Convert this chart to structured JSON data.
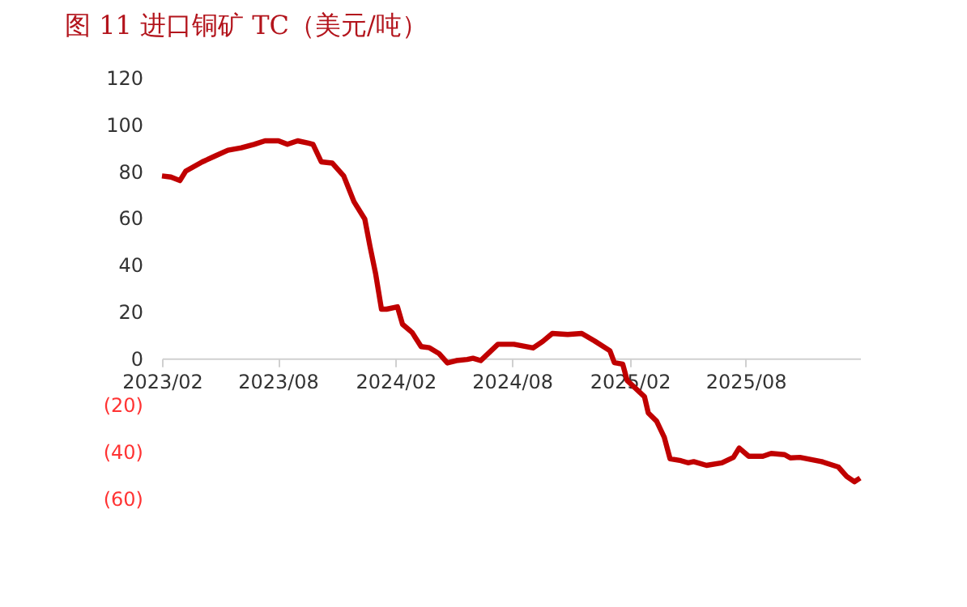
{
  "chart_data": {
    "type": "line",
    "title": "图 11  进口铜矿 TC（美元/吨）",
    "x": [
      "2023-02-01",
      "2023-02-15",
      "2023-03-01",
      "2023-03-10",
      "2023-04-05",
      "2023-04-25",
      "2023-05-15",
      "2023-06-05",
      "2023-06-25",
      "2023-07-12",
      "2023-08-02",
      "2023-08-16",
      "2023-09-01",
      "2023-09-18",
      "2023-09-25",
      "2023-10-08",
      "2023-10-25",
      "2023-11-12",
      "2023-11-28",
      "2023-12-15",
      "2023-12-23",
      "2024-01-01",
      "2024-01-10",
      "2024-01-18",
      "2024-02-04",
      "2024-02-12",
      "2024-02-27",
      "2024-03-12",
      "2024-03-25",
      "2024-04-09",
      "2024-04-22",
      "2024-05-06",
      "2024-05-23",
      "2024-06-01",
      "2024-06-13",
      "2024-07-10",
      "2024-08-04",
      "2024-09-03",
      "2024-09-18",
      "2024-10-03",
      "2024-10-27",
      "2024-11-18",
      "2024-12-08",
      "2025-01-01",
      "2025-01-08",
      "2025-01-21",
      "2025-01-28",
      "2025-02-24",
      "2025-03-02",
      "2025-03-15",
      "2025-03-27",
      "2025-04-05",
      "2025-04-22",
      "2025-05-03",
      "2025-05-12",
      "2025-06-01",
      "2025-06-25",
      "2025-07-13",
      "2025-07-22",
      "2025-08-06",
      "2025-08-28",
      "2025-09-10",
      "2025-10-01",
      "2025-10-10",
      "2025-10-25",
      "2025-11-28",
      "2025-12-24",
      "2026-01-06",
      "2026-01-18",
      "2026-01-27"
    ],
    "series": [
      {
        "color": "#c00000",
        "values": [
          78,
          77.5,
          76,
          80,
          84,
          86.5,
          89,
          90,
          91.5,
          93,
          93,
          91.5,
          93,
          92,
          91.5,
          84,
          83.5,
          78,
          67,
          59.5,
          48,
          36,
          21,
          21,
          22,
          14.5,
          11,
          5,
          4.5,
          2,
          -2,
          -1,
          -0.5,
          0,
          -1,
          6,
          6,
          4.4,
          7.2,
          10.6,
          10.2,
          10.6,
          7.4,
          3.2,
          -1.9,
          -2.5,
          -9.5,
          -16.4,
          -23.4,
          -26.9,
          -33.8,
          -43,
          -43.8,
          -44.7,
          -44.2,
          -45.8,
          -44.7,
          -42.4,
          -38.4,
          -41.9,
          -41.9,
          -40.7,
          -41.2,
          -42.6,
          -42.4,
          -44.2,
          -46.5,
          -50.5,
          -52.8,
          -51.2
        ]
      }
    ],
    "xlim": [
      "2023-02-01",
      "2026-01-27"
    ],
    "xticks": [
      {
        "value": "2023-02-01",
        "label": "2023/02"
      },
      {
        "value": "2023-08-01",
        "label": "2023/08"
      },
      {
        "value": "2024-02-01",
        "label": "2024/02"
      },
      {
        "value": "2024-08-01",
        "label": "2024/08"
      },
      {
        "value": "2025-02-01",
        "label": "2025/02"
      },
      {
        "value": "2025-08-01",
        "label": "2025/08"
      }
    ],
    "ylim": [
      -60,
      120
    ],
    "yticks": [
      {
        "value": -60,
        "label": "(60)"
      },
      {
        "value": -40,
        "label": "(40)"
      },
      {
        "value": -20,
        "label": "(20)"
      },
      {
        "value": 0,
        "label": "0"
      },
      {
        "value": 20,
        "label": "20"
      },
      {
        "value": 40,
        "label": "40"
      },
      {
        "value": 60,
        "label": "60"
      },
      {
        "value": 80,
        "label": "80"
      },
      {
        "value": 100,
        "label": "100"
      },
      {
        "value": 120,
        "label": "120"
      }
    ],
    "grid": false,
    "marker": "none",
    "line_style": "solid"
  }
}
